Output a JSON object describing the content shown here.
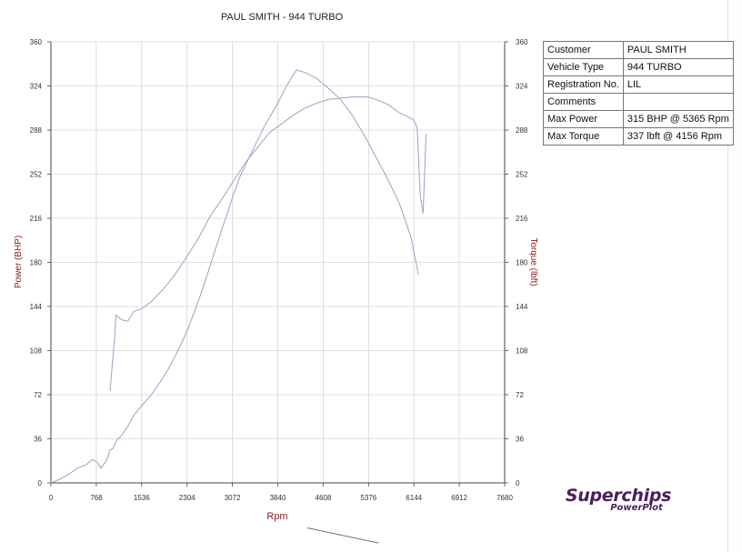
{
  "chart_data": {
    "type": "line",
    "title": "PAUL SMITH - 944 TURBO",
    "xlabel": "Rpm",
    "ylabel_left": "Power (BHP)",
    "ylabel_right": "Torque (lbft)",
    "xlim": [
      0,
      7680
    ],
    "ylim": [
      0,
      360
    ],
    "x_ticks": [
      "0",
      "768",
      "1536",
      "2304",
      "3072",
      "3840",
      "4608",
      "5376",
      "6144",
      "6912",
      "7680"
    ],
    "y_ticks": [
      "0",
      "36",
      "72",
      "108",
      "144",
      "180",
      "216",
      "252",
      "288",
      "324",
      "360"
    ],
    "grid": true,
    "colors": {
      "torque": "#9aa2c6",
      "power": "#9aa2c6",
      "grid": "#d6d6d6",
      "axis": "#444444"
    },
    "series": [
      {
        "name": "Torque",
        "x": [
          0,
          150,
          300,
          450,
          600,
          700,
          780,
          850,
          950,
          1000,
          1050,
          1100,
          1200,
          1300,
          1400,
          1536,
          1700,
          1800,
          1900,
          2000,
          2100,
          2200,
          2304,
          2400,
          2500,
          2600,
          2700,
          2800,
          2900,
          3000,
          3072,
          3200,
          3400,
          3600,
          3840,
          4000,
          4100,
          4156,
          4300,
          4500,
          4700,
          4900,
          5100,
          5300,
          5500,
          5700,
          5900,
          6000,
          6100,
          6144,
          6200,
          6220
        ],
        "values": [
          0,
          3,
          7,
          12,
          15,
          19,
          17,
          12,
          19,
          27,
          28,
          34,
          39,
          46,
          55,
          63,
          72,
          79,
          86,
          94,
          103,
          113,
          124,
          136,
          149,
          163,
          178,
          193,
          208,
          222,
          233,
          250,
          270,
          290,
          310,
          325,
          333,
          337,
          335,
          330,
          322,
          313,
          300,
          284,
          266,
          248,
          228,
          214,
          200,
          188,
          175,
          170
        ]
      },
      {
        "name": "Power",
        "x": [
          1000,
          1080,
          1100,
          1200,
          1300,
          1400,
          1536,
          1700,
          1900,
          2100,
          2304,
          2500,
          2700,
          2900,
          3072,
          3300,
          3500,
          3700,
          3900,
          4100,
          4300,
          4500,
          4700,
          4900,
          5100,
          5365,
          5500,
          5700,
          5900,
          6000,
          6144,
          6200,
          6250,
          6300,
          6350
        ],
        "values": [
          75,
          120,
          137,
          133,
          132,
          140,
          142,
          148,
          158,
          170,
          185,
          200,
          218,
          232,
          245,
          262,
          274,
          286,
          293,
          300,
          306,
          310,
          313,
          314,
          315,
          315,
          313,
          309,
          302,
          300,
          296,
          290,
          235,
          220,
          285
        ]
      }
    ]
  },
  "info": [
    {
      "label": "Customer",
      "value": "PAUL SMITH"
    },
    {
      "label": "Vehicle Type",
      "value": "944 TURBO"
    },
    {
      "label": "Registration No.",
      "value": "LIL"
    },
    {
      "label": "Comments",
      "value": ""
    },
    {
      "label": "Max Power",
      "value": "315 BHP @ 5365 Rpm"
    },
    {
      "label": "Max Torque",
      "value": "337 lbft @ 4156 Rpm"
    }
  ],
  "logo": {
    "main": "Superchips",
    "sub": "PowerPlot"
  }
}
